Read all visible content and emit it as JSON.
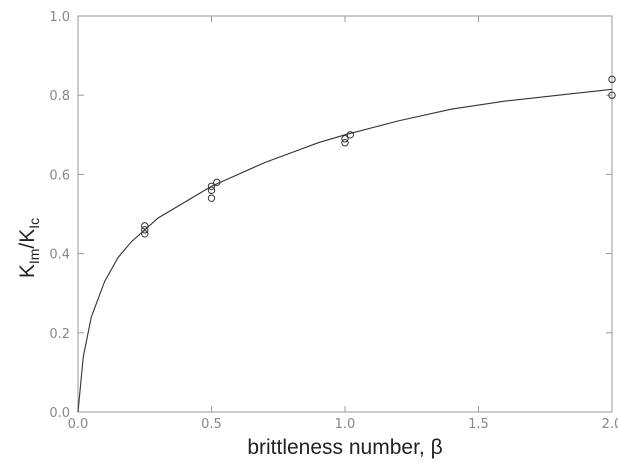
{
  "chart_data": {
    "type": "scatter",
    "xlabel": "brittleness number, β",
    "ylabel": "K_Im/K_Ic",
    "ylabel_parts": {
      "k1": "K",
      "sub1": "Im",
      "slash": "/",
      "k2": "K",
      "sub2": "Ic"
    },
    "xlim": [
      0.0,
      2.0
    ],
    "ylim": [
      0.0,
      1.0
    ],
    "x_ticks": [
      0.0,
      0.5,
      1.0,
      1.5,
      2.0
    ],
    "x_tick_labels": [
      "0.0",
      "0.5",
      "1.0",
      "1.5",
      "2.0"
    ],
    "y_ticks": [
      0.0,
      0.2,
      0.4,
      0.6,
      0.8,
      1.0
    ],
    "y_tick_labels": [
      "0.0",
      "0.2",
      "0.4",
      "0.6",
      "0.8",
      "1.0"
    ],
    "grid": false,
    "series": [
      {
        "kind": "points",
        "marker": "open-circle",
        "x": [
          0.25,
          0.25,
          0.25,
          0.5,
          0.5,
          0.5,
          0.52,
          1.0,
          1.0,
          1.02,
          2.0,
          2.0
        ],
        "y": [
          0.46,
          0.47,
          0.45,
          0.56,
          0.54,
          0.57,
          0.58,
          0.68,
          0.69,
          0.7,
          0.84,
          0.8
        ]
      },
      {
        "kind": "curve",
        "x": [
          0.0,
          0.02,
          0.05,
          0.1,
          0.15,
          0.2,
          0.25,
          0.3,
          0.4,
          0.5,
          0.6,
          0.7,
          0.8,
          0.9,
          1.0,
          1.2,
          1.4,
          1.6,
          1.8,
          2.0
        ],
        "y": [
          0.0,
          0.14,
          0.24,
          0.33,
          0.39,
          0.43,
          0.46,
          0.49,
          0.53,
          0.57,
          0.6,
          0.63,
          0.655,
          0.68,
          0.7,
          0.735,
          0.765,
          0.785,
          0.8,
          0.815
        ]
      }
    ],
    "colors": {
      "axis": "#999999",
      "marks": "#333333",
      "text": "#222222"
    }
  }
}
